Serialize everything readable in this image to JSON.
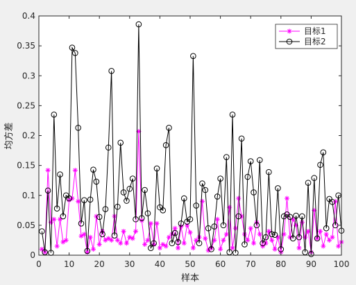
{
  "chart_data": {
    "type": "line",
    "title": "",
    "xlabel": "样本",
    "ylabel": "均方差",
    "xlim": [
      0,
      100
    ],
    "ylim": [
      0,
      0.4
    ],
    "xticks": [
      "0",
      "10",
      "20",
      "30",
      "40",
      "50",
      "60",
      "70",
      "80",
      "90",
      "100"
    ],
    "yticks": [
      "0",
      "0.05",
      "0.1",
      "0.15",
      "0.2",
      "0.25",
      "0.3",
      "0.35",
      "0.4"
    ],
    "grid": false,
    "legend_position": "top-right",
    "x": [
      1,
      2,
      3,
      4,
      5,
      6,
      7,
      8,
      9,
      10,
      11,
      12,
      13,
      14,
      15,
      16,
      17,
      18,
      19,
      20,
      21,
      22,
      23,
      24,
      25,
      26,
      27,
      28,
      29,
      30,
      31,
      32,
      33,
      34,
      35,
      36,
      37,
      38,
      39,
      40,
      41,
      42,
      43,
      44,
      45,
      46,
      47,
      48,
      49,
      50,
      51,
      52,
      53,
      54,
      55,
      56,
      57,
      58,
      59,
      60,
      61,
      62,
      63,
      64,
      65,
      66,
      67,
      68,
      69,
      70,
      71,
      72,
      73,
      74,
      75,
      76,
      77,
      78,
      79,
      80,
      81,
      82,
      83,
      84,
      85,
      86,
      87,
      88,
      89,
      90,
      91,
      92,
      93,
      94,
      95,
      96,
      97,
      98,
      99,
      100
    ],
    "series": [
      {
        "name": "目标1",
        "color": "#ff00ff",
        "marker": "star",
        "values": [
          0.01,
          0.005,
          0.142,
          0.055,
          0.06,
          0.015,
          0.06,
          0.022,
          0.025,
          0.092,
          0.095,
          0.142,
          0.09,
          0.032,
          0.035,
          0.005,
          0.03,
          0.01,
          0.065,
          0.018,
          0.04,
          0.025,
          0.028,
          0.025,
          0.065,
          0.025,
          0.02,
          0.04,
          0.02,
          0.03,
          0.028,
          0.04,
          0.207,
          0.058,
          0.018,
          0.025,
          0.053,
          0.018,
          0.053,
          0.012,
          0.018,
          0.015,
          0.03,
          0.035,
          0.045,
          0.012,
          0.048,
          0.02,
          0.05,
          0.038,
          0.012,
          0.025,
          0.03,
          0.09,
          0.028,
          0.008,
          0.012,
          0.025,
          0.06,
          0.01,
          0.025,
          0.035,
          0.08,
          0.012,
          0.045,
          0.095,
          0.065,
          0.035,
          0.025,
          0.045,
          0.02,
          0.055,
          0.035,
          0.015,
          0.02,
          0.04,
          0.025,
          0.01,
          0.03,
          0.005,
          0.035,
          0.095,
          0.03,
          0.06,
          0.05,
          0.012,
          0.055,
          0.03,
          0.04,
          0.005,
          0.075,
          0.028,
          0.04,
          0.015,
          0.035,
          0.025,
          0.03,
          0.09,
          0.015,
          0.022
        ]
      },
      {
        "name": "目标2",
        "color": "#000000",
        "marker": "circle",
        "values": [
          0.04,
          0.005,
          0.108,
          0.004,
          0.235,
          0.078,
          0.135,
          0.065,
          0.1,
          0.095,
          0.347,
          0.338,
          0.213,
          0.053,
          0.092,
          0.007,
          0.093,
          0.143,
          0.123,
          0.064,
          0.035,
          0.077,
          0.18,
          0.308,
          0.033,
          0.081,
          0.188,
          0.105,
          0.091,
          0.111,
          0.128,
          0.06,
          0.386,
          0.062,
          0.109,
          0.07,
          0.012,
          0.02,
          0.145,
          0.08,
          0.075,
          0.184,
          0.213,
          0.02,
          0.037,
          0.022,
          0.053,
          0.095,
          0.056,
          0.06,
          0.333,
          0.083,
          0.02,
          0.12,
          0.109,
          0.045,
          0.01,
          0.048,
          0.098,
          0.128,
          0.05,
          0.164,
          0.005,
          0.235,
          0.004,
          0.065,
          0.195,
          0.018,
          0.131,
          0.157,
          0.105,
          0.05,
          0.159,
          0.02,
          0.03,
          0.139,
          0.035,
          0.034,
          0.112,
          0.01,
          0.065,
          0.068,
          0.064,
          0.028,
          0.066,
          0.03,
          0.065,
          0.005,
          0.121,
          0.002,
          0.129,
          0.028,
          0.151,
          0.172,
          0.045,
          0.094,
          0.089,
          0.05,
          0.1,
          0.041
        ]
      }
    ]
  }
}
